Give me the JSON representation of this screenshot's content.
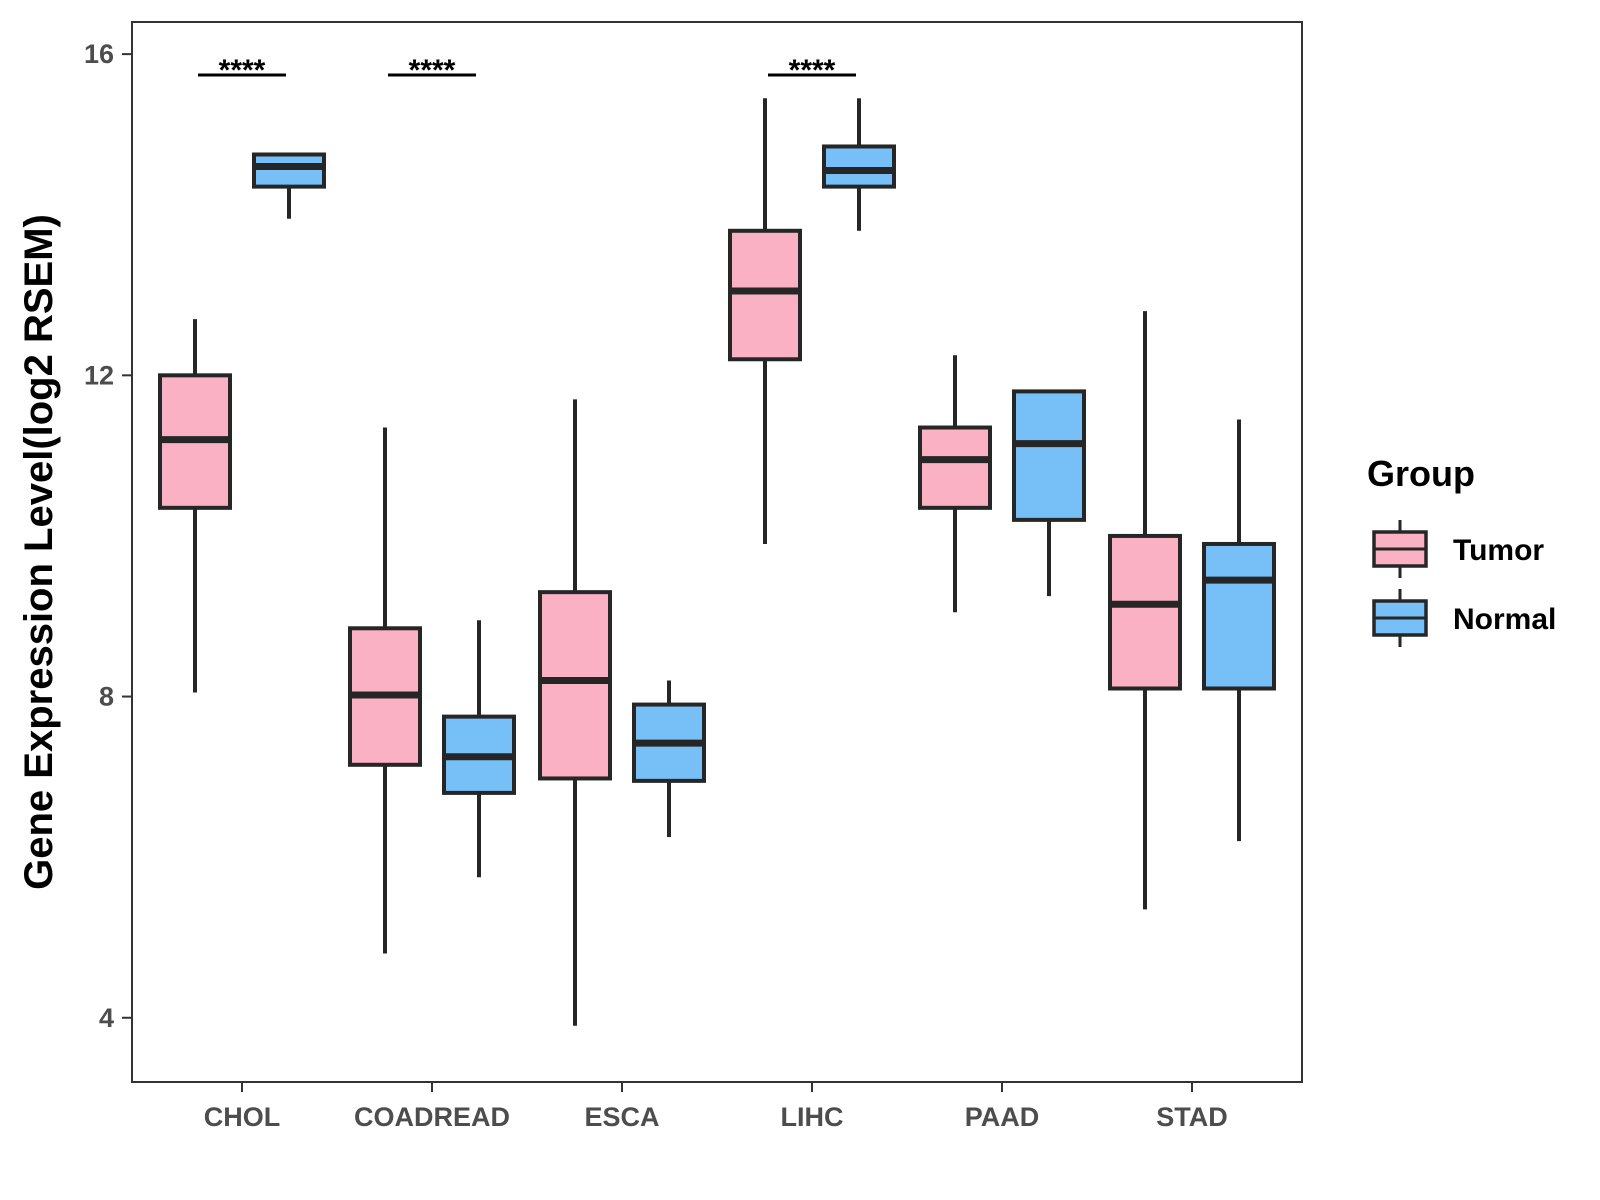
{
  "chart_data": {
    "type": "boxplot",
    "xlabel": "",
    "ylabel": "Gene Expression Level(log2 RSEM)",
    "ylim": [
      3.2,
      16.4
    ],
    "yticks": [
      4,
      8,
      12,
      16
    ],
    "ytick_labels": [
      "4",
      "8",
      "12",
      "16"
    ],
    "grid": false,
    "categories": [
      "CHOL",
      "COADREAD",
      "ESCA",
      "LIHC",
      "PAAD",
      "STAD"
    ],
    "legend": {
      "title": "Group",
      "position": "right",
      "entries": [
        {
          "name": "Tumor",
          "color": "#fab1c3"
        },
        {
          "name": "Normal",
          "color": "#77bff7"
        }
      ]
    },
    "series": [
      {
        "name": "Tumor",
        "color": "#fab1c3",
        "boxes": [
          {
            "category": "CHOL",
            "whisker_low": 8.05,
            "q1": 10.35,
            "median": 11.2,
            "q3": 12.0,
            "whisker_high": 12.7
          },
          {
            "category": "COADREAD",
            "whisker_low": 4.8,
            "q1": 7.15,
            "median": 8.02,
            "q3": 8.85,
            "whisker_high": 11.35
          },
          {
            "category": "ESCA",
            "whisker_low": 3.9,
            "q1": 6.98,
            "median": 8.2,
            "q3": 9.3,
            "whisker_high": 11.7
          },
          {
            "category": "LIHC",
            "whisker_low": 9.9,
            "q1": 12.2,
            "median": 13.05,
            "q3": 13.8,
            "whisker_high": 15.45
          },
          {
            "category": "PAAD",
            "whisker_low": 9.05,
            "q1": 10.35,
            "median": 10.95,
            "q3": 11.35,
            "whisker_high": 12.25
          },
          {
            "category": "STAD",
            "whisker_low": 5.35,
            "q1": 8.1,
            "median": 9.15,
            "q3": 10.0,
            "whisker_high": 12.8
          }
        ]
      },
      {
        "name": "Normal",
        "color": "#77bff7",
        "boxes": [
          {
            "category": "CHOL",
            "whisker_low": 13.95,
            "q1": 14.35,
            "median": 14.6,
            "q3": 14.75,
            "whisker_high": 14.75
          },
          {
            "category": "COADREAD",
            "whisker_low": 5.75,
            "q1": 6.8,
            "median": 7.25,
            "q3": 7.75,
            "whisker_high": 8.95
          },
          {
            "category": "ESCA",
            "whisker_low": 6.25,
            "q1": 6.95,
            "median": 7.42,
            "q3": 7.9,
            "whisker_high": 8.2
          },
          {
            "category": "LIHC",
            "whisker_low": 13.8,
            "q1": 14.35,
            "median": 14.55,
            "q3": 14.85,
            "whisker_high": 15.45
          },
          {
            "category": "PAAD",
            "whisker_low": 9.25,
            "q1": 10.2,
            "median": 11.15,
            "q3": 11.8,
            "whisker_high": 11.8
          },
          {
            "category": "STAD",
            "whisker_low": 6.2,
            "q1": 8.1,
            "median": 9.45,
            "q3": 9.9,
            "whisker_high": 11.45
          }
        ]
      }
    ],
    "significance": [
      {
        "category": "CHOL",
        "label": "****"
      },
      {
        "category": "COADREAD",
        "label": "****"
      },
      {
        "category": "LIHC",
        "label": "****"
      }
    ]
  }
}
